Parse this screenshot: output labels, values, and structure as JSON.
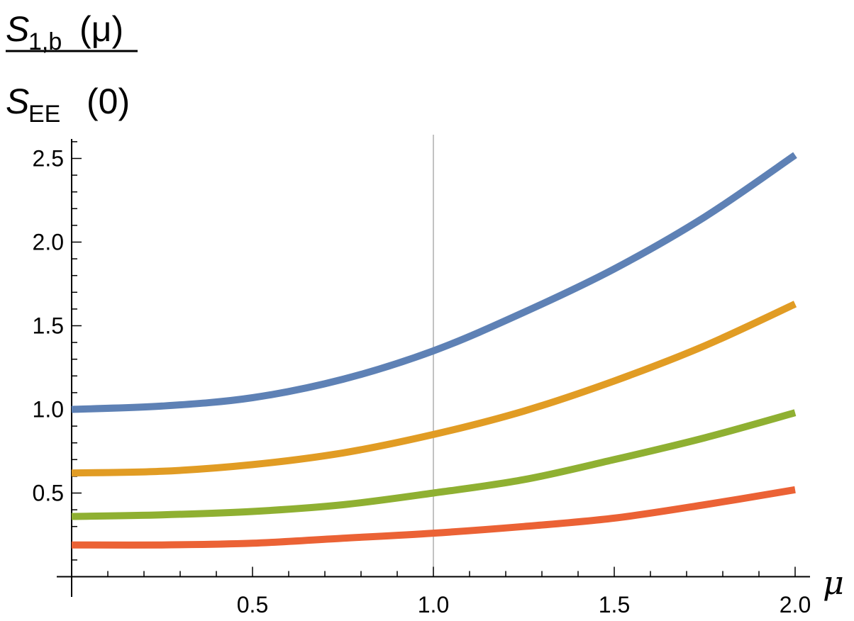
{
  "chart_data": {
    "type": "line",
    "xlabel": "μ",
    "ylabel": {
      "numerator": {
        "symbol": "S",
        "subscript": "1,b",
        "argument": "(μ)"
      },
      "denominator": {
        "symbol": "S",
        "subscript": "EE",
        "argument": "(0)"
      }
    },
    "xlim": [
      0,
      2.0
    ],
    "ylim": [
      0.0,
      2.6
    ],
    "x_ticks": [
      "0.5",
      "1.0",
      "1.5",
      "2.0"
    ],
    "y_ticks": [
      "0.5",
      "1.0",
      "1.5",
      "2.0",
      "2.5"
    ],
    "vertical_reference_line": 1.0,
    "x": [
      0,
      0.25,
      0.5,
      0.75,
      1.0,
      1.25,
      1.5,
      1.75,
      2.0
    ],
    "series": [
      {
        "color": "#5E81B5",
        "values": [
          1.0,
          1.02,
          1.07,
          1.18,
          1.35,
          1.58,
          1.84,
          2.15,
          2.52
        ]
      },
      {
        "color": "#E19C24",
        "values": [
          0.62,
          0.63,
          0.67,
          0.74,
          0.85,
          0.99,
          1.17,
          1.38,
          1.63
        ]
      },
      {
        "color": "#8FB032",
        "values": [
          0.36,
          0.37,
          0.39,
          0.43,
          0.5,
          0.58,
          0.7,
          0.83,
          0.98
        ]
      },
      {
        "color": "#EB6235",
        "values": [
          0.19,
          0.19,
          0.2,
          0.23,
          0.26,
          0.3,
          0.35,
          0.43,
          0.52
        ]
      }
    ]
  }
}
